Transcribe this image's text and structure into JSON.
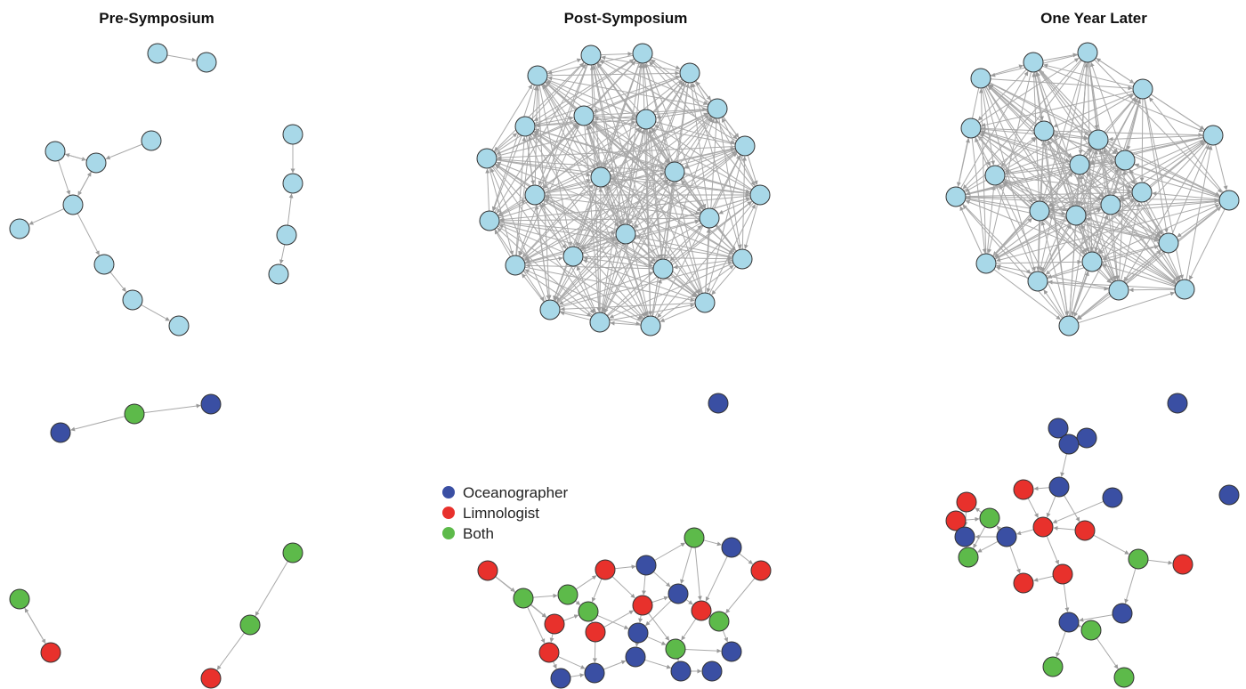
{
  "panels": [
    {
      "id": "pre",
      "title": "Pre-Symposium"
    },
    {
      "id": "post",
      "title": "Post-Symposium"
    },
    {
      "id": "later",
      "title": "One Year Later"
    }
  ],
  "legend": [
    {
      "key": "oceanographer",
      "label": "Oceanographer",
      "color": "#3a4fa3"
    },
    {
      "key": "limnologist",
      "label": "Limnologist",
      "color": "#e8312c"
    },
    {
      "key": "both",
      "label": "Both",
      "color": "#5dba4a"
    }
  ],
  "colors": {
    "top_network_node": "#a8d8e8",
    "edge": "#a9a9a9",
    "node_outline": "#333333"
  }
}
